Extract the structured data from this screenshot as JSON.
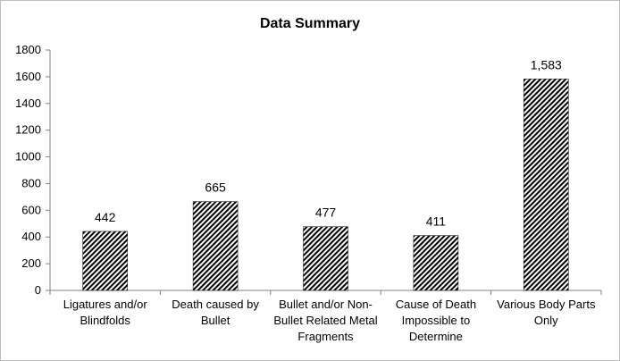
{
  "chart_data": {
    "type": "bar",
    "title": "Data Summary",
    "categories": [
      [
        "Ligatures and/or",
        "Blindfolds"
      ],
      [
        "Death caused by",
        "Bullet"
      ],
      [
        "Bullet and/or Non-",
        "Bullet Related Metal",
        "Fragments"
      ],
      [
        "Cause of Death",
        "Impossible to",
        "Determine"
      ],
      [
        "Various Body Parts",
        "Only"
      ]
    ],
    "values": [
      442,
      665,
      477,
      411,
      1583
    ],
    "value_labels": [
      "442",
      "665",
      "477",
      "411",
      "1,583"
    ],
    "ylim": [
      0,
      1800
    ],
    "yticks": [
      0,
      200,
      400,
      600,
      800,
      1000,
      1200,
      1400,
      1600,
      1800
    ],
    "grid": false,
    "bar_pattern": "diagonal-hatch",
    "bar_color": "#000000"
  }
}
